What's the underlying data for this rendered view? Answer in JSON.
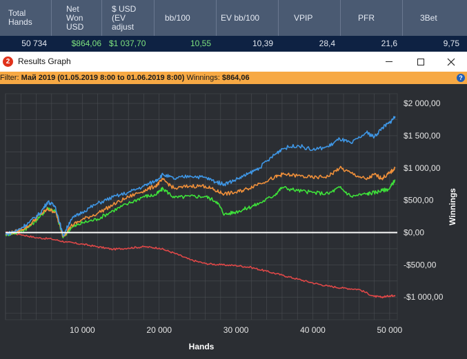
{
  "stats": {
    "headers": [
      "Total\nHands",
      "Net\nWon\nUSD",
      "$ USD\n(EV\nadjust",
      "bb/100",
      "EV bb/100",
      "VPIP",
      "PFR",
      "3Bet"
    ],
    "values": [
      "50 734",
      "$864,06",
      "$1 037,70",
      "10,55",
      "10,39",
      "28,4",
      "21,6",
      "9,75"
    ]
  },
  "window": {
    "icon_letter": "2",
    "title": "Results Graph"
  },
  "filter": {
    "label": "Filter:",
    "value": "Май 2019 (01.05.2019 8:00 to 01.06.2019 8:00)",
    "winnings_label": "Winnings:",
    "winnings_value": "$864,06",
    "help_glyph": "?"
  },
  "colors": {
    "blue": "#3f97e6",
    "orange": "#f0903a",
    "green": "#3ee23a",
    "red": "#e04848",
    "zero": "#ffffff",
    "plot_bg": "#2b2e33",
    "grid": "#4a4d52"
  },
  "chart_data": {
    "type": "line",
    "xlabel": "Hands",
    "ylabel": "Winnings",
    "xlim": [
      0,
      51000
    ],
    "ylim": [
      -1350,
      2150
    ],
    "x_ticks": [
      10000,
      20000,
      30000,
      40000,
      50000
    ],
    "x_tick_labels": [
      "10 000",
      "20 000",
      "30 000",
      "40 000",
      "50 000"
    ],
    "y_ticks": [
      2000,
      1500,
      1000,
      500,
      0,
      -500,
      -1000
    ],
    "y_tick_labels": [
      "$2 000,00",
      "$1 500,00",
      "$1 000,00",
      "$500,00",
      "$0,00",
      "-$500,00",
      "-$1 000,00"
    ],
    "grid": true,
    "series": [
      {
        "color": "blue",
        "x": [
          0,
          1500,
          3000,
          4500,
          5500,
          6500,
          7500,
          8500,
          10000,
          12000,
          14000,
          16000,
          18000,
          19500,
          20500,
          22000,
          24000,
          26000,
          27500,
          28500,
          30000,
          31500,
          33000,
          35000,
          36000,
          38000,
          40000,
          42000,
          43500,
          45000,
          47000,
          48000,
          49000,
          50000,
          50700
        ],
        "y": [
          -30,
          30,
          150,
          300,
          480,
          400,
          -50,
          200,
          320,
          450,
          550,
          620,
          720,
          800,
          900,
          830,
          880,
          850,
          780,
          750,
          820,
          900,
          1000,
          1200,
          1300,
          1350,
          1280,
          1330,
          1450,
          1380,
          1550,
          1480,
          1620,
          1700,
          1800
        ]
      },
      {
        "color": "orange",
        "x": [
          0,
          1500,
          3000,
          4500,
          5500,
          6500,
          7500,
          8500,
          10000,
          12000,
          14000,
          16000,
          18000,
          19500,
          20500,
          22000,
          24000,
          26000,
          27500,
          28500,
          30000,
          31500,
          33000,
          35000,
          36000,
          38000,
          40000,
          42000,
          43500,
          45000,
          47000,
          48000,
          49000,
          50000,
          50700
        ],
        "y": [
          -30,
          20,
          100,
          280,
          360,
          320,
          -60,
          100,
          200,
          300,
          430,
          550,
          650,
          720,
          820,
          680,
          720,
          720,
          640,
          600,
          620,
          680,
          760,
          850,
          900,
          880,
          850,
          870,
          1000,
          920,
          820,
          900,
          840,
          920,
          1000
        ]
      },
      {
        "color": "green",
        "x": [
          0,
          1500,
          3000,
          4500,
          5500,
          6500,
          7500,
          8500,
          10000,
          12000,
          14000,
          16000,
          18000,
          19500,
          20500,
          22000,
          24000,
          26000,
          27500,
          28500,
          30000,
          31500,
          33000,
          35000,
          36000,
          38000,
          40000,
          42000,
          43500,
          45000,
          47000,
          48000,
          49000,
          50000,
          50700
        ],
        "y": [
          -30,
          0,
          80,
          250,
          380,
          330,
          -80,
          70,
          150,
          210,
          340,
          450,
          560,
          580,
          680,
          540,
          560,
          560,
          480,
          280,
          320,
          380,
          450,
          580,
          700,
          650,
          620,
          600,
          700,
          560,
          600,
          620,
          650,
          680,
          820
        ]
      },
      {
        "color": "red",
        "x": [
          0,
          2000,
          4000,
          6000,
          8000,
          10000,
          12000,
          14000,
          16000,
          18000,
          20000,
          22000,
          24000,
          26000,
          28000,
          30000,
          32000,
          34000,
          36000,
          38000,
          40000,
          42000,
          44000,
          46000,
          48000,
          49000,
          50000,
          50700
        ],
        "y": [
          0,
          -30,
          -80,
          -100,
          -150,
          -180,
          -220,
          -260,
          -240,
          -220,
          -240,
          -320,
          -420,
          -480,
          -500,
          -510,
          -540,
          -600,
          -660,
          -720,
          -780,
          -830,
          -860,
          -880,
          -990,
          -1000,
          -980,
          -970
        ]
      }
    ]
  }
}
